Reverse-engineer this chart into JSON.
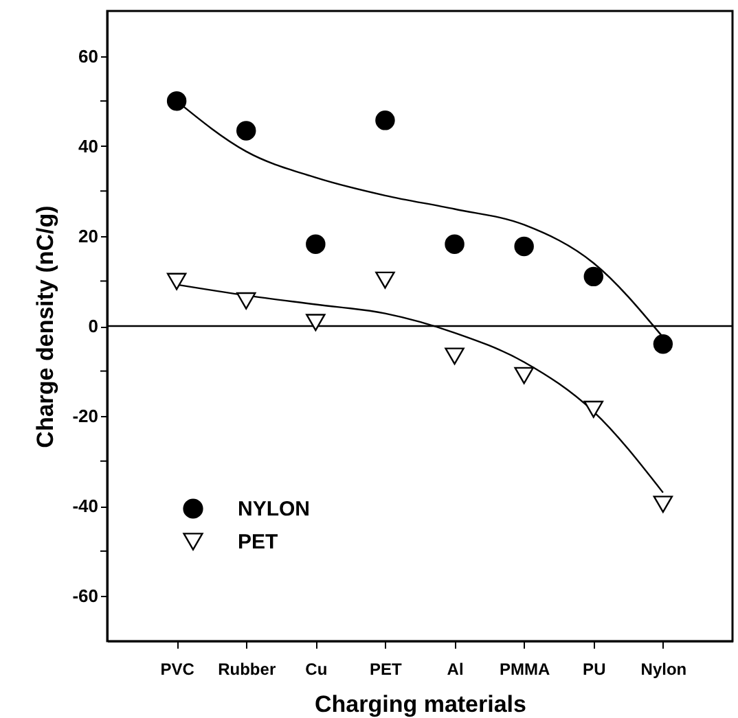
{
  "chart_data": {
    "type": "scatter",
    "xlabel": "Charging materials",
    "ylabel": "Charge density (nC/g)",
    "categories": [
      "PVC",
      "Rubber",
      "Cu",
      "PET",
      "Al",
      "PMMA",
      "PU",
      "Nylon"
    ],
    "series": [
      {
        "name": "NYLON",
        "type": "scatter",
        "marker": "circle",
        "color": "#000000",
        "values": [
          50,
          43.4,
          18.2,
          45.7,
          18.2,
          17.7,
          11,
          -4
        ]
      },
      {
        "name": "PET",
        "type": "scatter",
        "marker": "triangle",
        "color": "#000000",
        "values": [
          9.9,
          5.6,
          0.8,
          10.2,
          -6.7,
          -11,
          -18.5,
          -39.6
        ]
      },
      {
        "type": "line",
        "line_style": "solid",
        "color": "#000000",
        "values": [
          50,
          38.8,
          33,
          29,
          26,
          22.5,
          14,
          -2.5
        ]
      },
      {
        "type": "line",
        "line_style": "solid",
        "color": "#000000",
        "values": [
          9.2,
          6.8,
          4.8,
          2.8,
          -1.5,
          -8,
          -19,
          -37
        ]
      }
    ],
    "ylim": [
      -70,
      70
    ],
    "yticks": [
      -60,
      {
        "value": -50,
        "label": null
      },
      -40,
      {
        "value": -30,
        "label": null
      },
      -20,
      {
        "value": -10,
        "label": null
      },
      0,
      {
        "value": 10,
        "label": null
      },
      20,
      {
        "value": 30,
        "label": null
      },
      40,
      {
        "value": 50,
        "label": null
      },
      60
    ],
    "ref_lines": [
      {
        "axis": "y",
        "value": 0,
        "color": "#000000"
      }
    ],
    "grid": false,
    "legend": "bottom left"
  }
}
